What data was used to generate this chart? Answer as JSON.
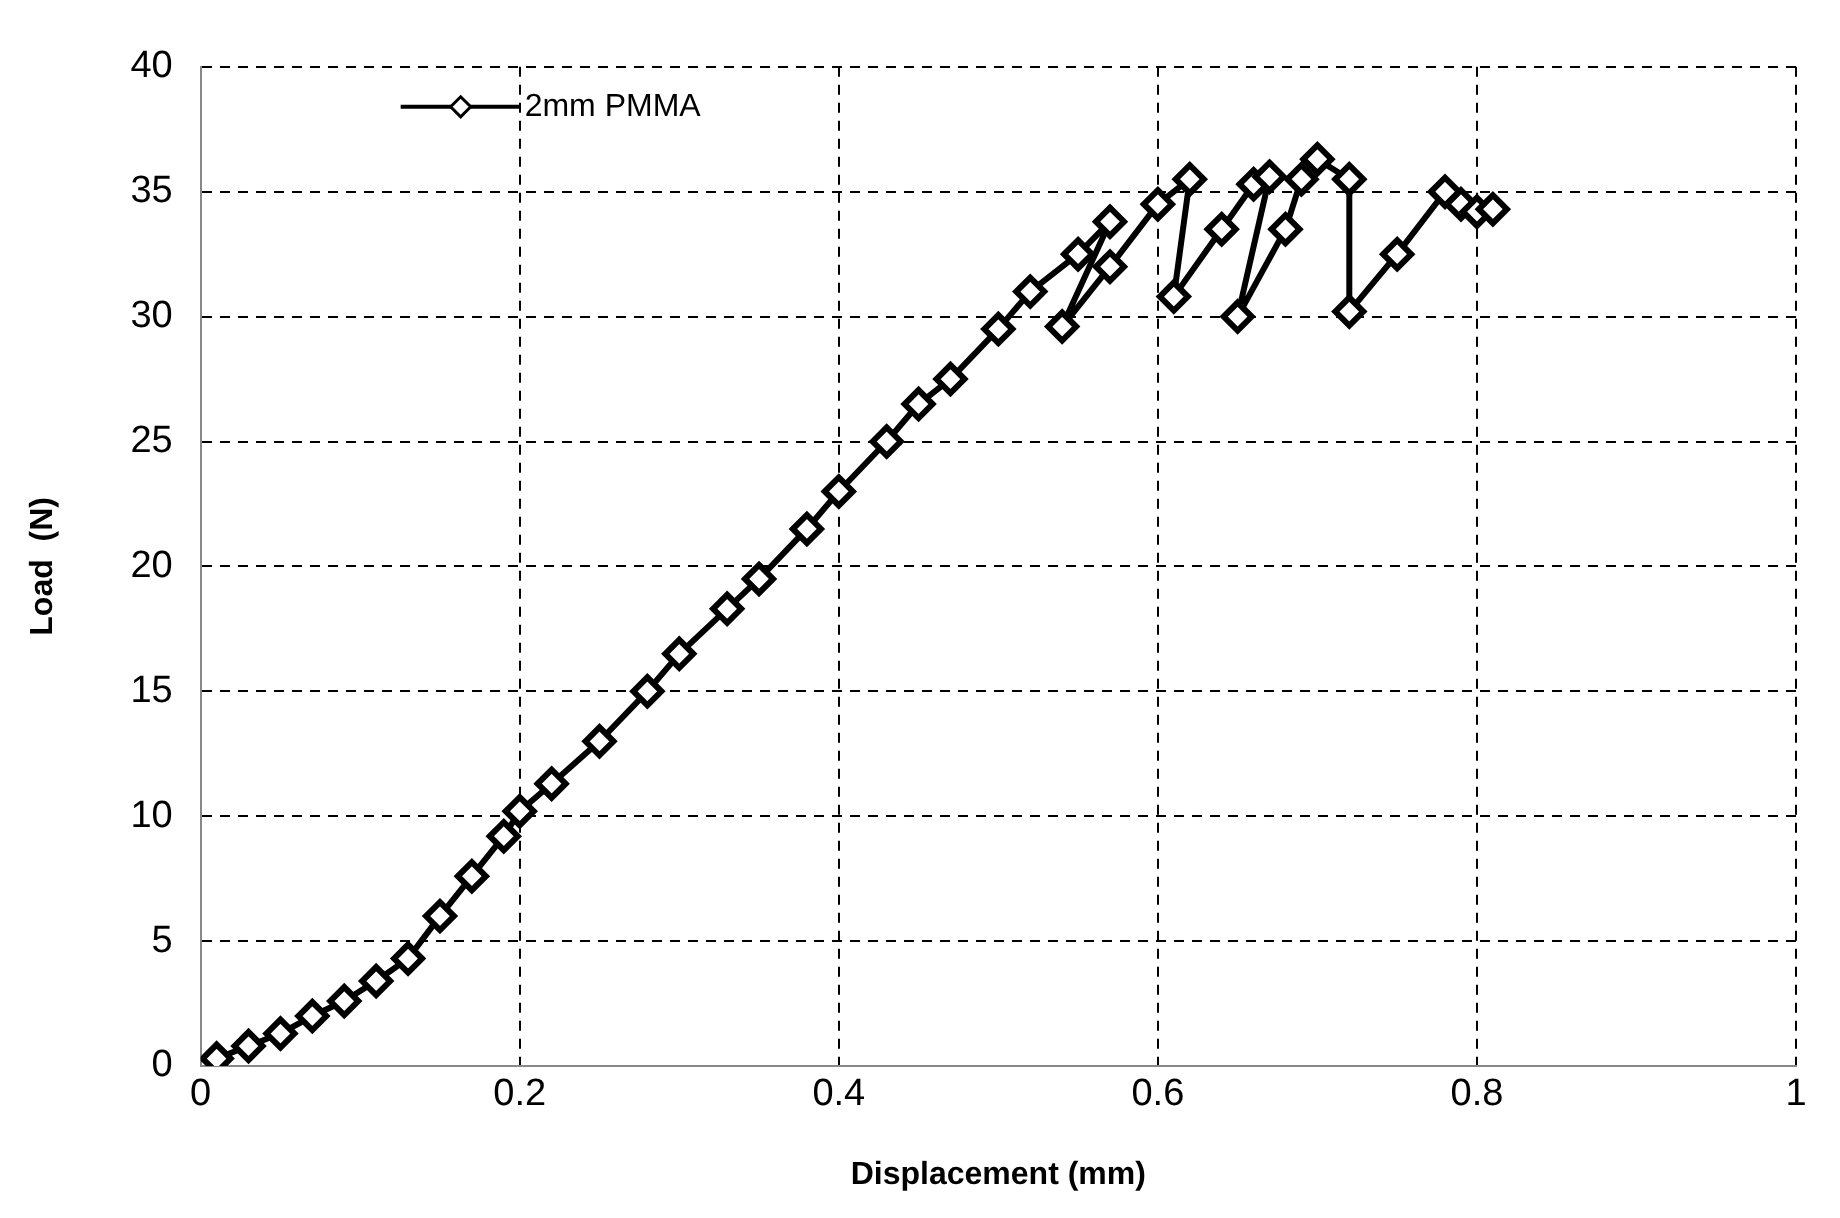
{
  "chart_data": {
    "type": "line",
    "xlabel": "Displacement (mm)",
    "ylabel": "Load  (N)",
    "xlim": [
      0,
      1
    ],
    "xticks": [
      0,
      {
        "value": 0.2,
        "label": "0.2"
      },
      {
        "value": 0.4,
        "label": "0.4"
      },
      {
        "value": 0.6,
        "label": "0.6"
      },
      {
        "value": 0.8,
        "label": "0.8"
      },
      1
    ],
    "ylim": [
      0,
      40
    ],
    "yticks": [
      0,
      5,
      10,
      15,
      20,
      25,
      30,
      35,
      40
    ],
    "grid": true,
    "legend": "top left",
    "marker": "diamond",
    "line_style": "solid",
    "series": [
      {
        "name": "2mm PMMA",
        "color": "#000000",
        "x": [
          0.01,
          0.03,
          0.05,
          0.07,
          0.09,
          0.11,
          0.13,
          0.15,
          0.17,
          0.19,
          0.2,
          0.22,
          0.25,
          0.28,
          0.3,
          0.33,
          0.35,
          0.38,
          0.4,
          0.43,
          0.45,
          0.47,
          0.5,
          0.52,
          0.55,
          0.57,
          0.54,
          0.57,
          0.6,
          0.62,
          0.61,
          0.64,
          0.66,
          0.67,
          0.65,
          0.68,
          0.69,
          0.7,
          0.72,
          0.72,
          0.75,
          0.78,
          0.79,
          0.8,
          0.81
        ],
        "values": [
          0.3,
          0.8,
          1.3,
          2,
          2.6,
          3.4,
          4.3,
          6,
          7.6,
          9.2,
          10.2,
          11.3,
          13,
          15,
          16.5,
          18.3,
          19.5,
          21.5,
          23,
          25,
          26.5,
          27.5,
          29.5,
          31,
          32.5,
          33.8,
          29.6,
          32,
          34.5,
          35.5,
          30.8,
          33.5,
          35.3,
          35.6,
          30,
          33.5,
          35.5,
          36.3,
          35.5,
          30.2,
          32.5,
          35,
          34.5,
          34.2,
          34.3
        ]
      }
    ]
  }
}
